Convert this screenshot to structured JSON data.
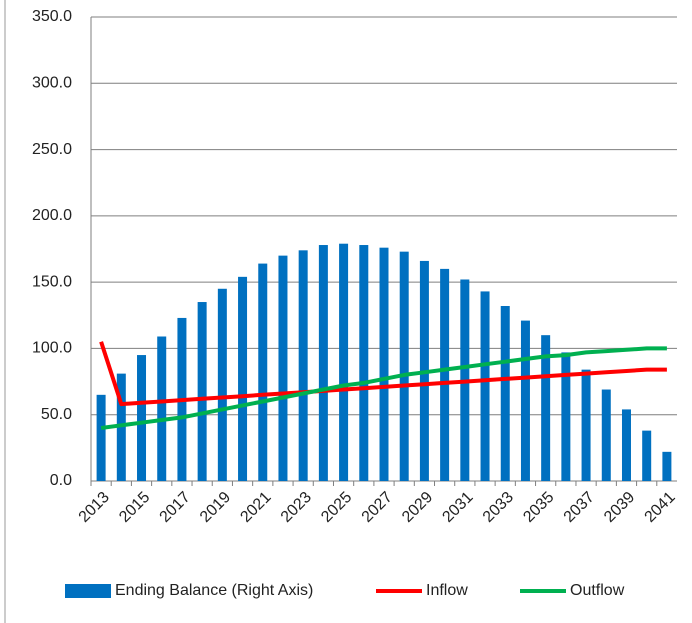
{
  "chart_data": {
    "type": "bar",
    "categories": [
      "2013",
      null,
      "2015",
      null,
      "2017",
      null,
      "2019",
      null,
      "2021",
      null,
      "2023",
      null,
      "2025",
      null,
      "2027",
      null,
      "2029",
      null,
      "2031",
      null,
      "2033",
      null,
      "2035",
      null,
      "2037",
      null,
      "2039",
      null,
      "2041"
    ],
    "series": [
      {
        "name": "Ending Balance (Right Axis)",
        "type": "bar",
        "color": "#0070c0",
        "values": [
          65,
          81,
          95,
          109,
          123,
          135,
          145,
          154,
          164,
          170,
          174,
          178,
          179,
          178,
          176,
          173,
          166,
          160,
          152,
          143,
          132,
          121,
          110,
          97,
          84,
          69,
          54,
          38,
          22
        ]
      },
      {
        "name": "Inflow",
        "type": "line",
        "color": "#ff0000",
        "values": [
          105,
          58,
          59,
          60,
          61,
          62,
          63,
          64,
          65,
          66,
          67,
          68,
          69,
          70,
          71,
          72,
          73,
          74,
          75,
          76,
          77,
          78,
          79,
          80,
          81,
          82,
          83,
          84,
          84
        ]
      },
      {
        "name": "Outflow",
        "type": "line",
        "color": "#00b050",
        "values": [
          40,
          42,
          44,
          46,
          48,
          51,
          54,
          57,
          60,
          63,
          66,
          69,
          72,
          74,
          77,
          80,
          82,
          84,
          86,
          88,
          90,
          92,
          94,
          95,
          97,
          98,
          99,
          100,
          100
        ]
      }
    ],
    "ylim": [
      0,
      350
    ],
    "yticks": [
      {
        "value": 0,
        "label": "0.0"
      },
      {
        "value": 50,
        "label": "50.0"
      },
      {
        "value": 100,
        "label": "100.0"
      },
      {
        "value": 150,
        "label": "150.0"
      },
      {
        "value": 200,
        "label": "200.0"
      },
      {
        "value": 250,
        "label": "250.0"
      },
      {
        "value": 300,
        "label": "300.0"
      },
      {
        "value": 350,
        "label": "350.0"
      }
    ],
    "grid": true,
    "legend": "bottom"
  }
}
